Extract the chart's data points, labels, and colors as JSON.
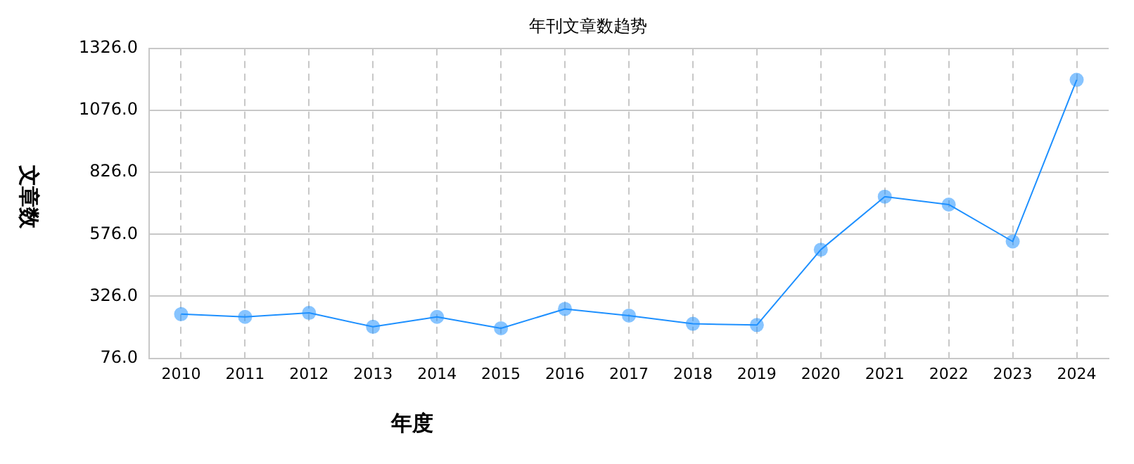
{
  "chart_data": {
    "type": "line",
    "title": "年刊文章数趋势",
    "xlabel": "年度",
    "ylabel": "文章数",
    "categories": [
      "2010",
      "2011",
      "2012",
      "2013",
      "2014",
      "2015",
      "2016",
      "2017",
      "2018",
      "2019",
      "2020",
      "2021",
      "2022",
      "2023",
      "2024"
    ],
    "series": [
      {
        "color": "#1e90ff",
        "values": [
          254,
          243,
          259,
          203,
          243,
          197,
          275,
          248,
          215,
          210,
          514,
          728,
          696,
          547,
          1199
        ]
      }
    ],
    "ylim": [
      76,
      1326
    ],
    "yticks": [
      {
        "value": 76,
        "label": "76.0"
      },
      {
        "value": 326,
        "label": "326.0"
      },
      {
        "value": 576,
        "label": "576.0"
      },
      {
        "value": 826,
        "label": "826.0"
      },
      {
        "value": 1076,
        "label": "1076.0"
      },
      {
        "value": 1326,
        "label": "1326.0"
      }
    ],
    "grid": true,
    "legend": false,
    "marker": "circle",
    "line_style": "solid"
  }
}
